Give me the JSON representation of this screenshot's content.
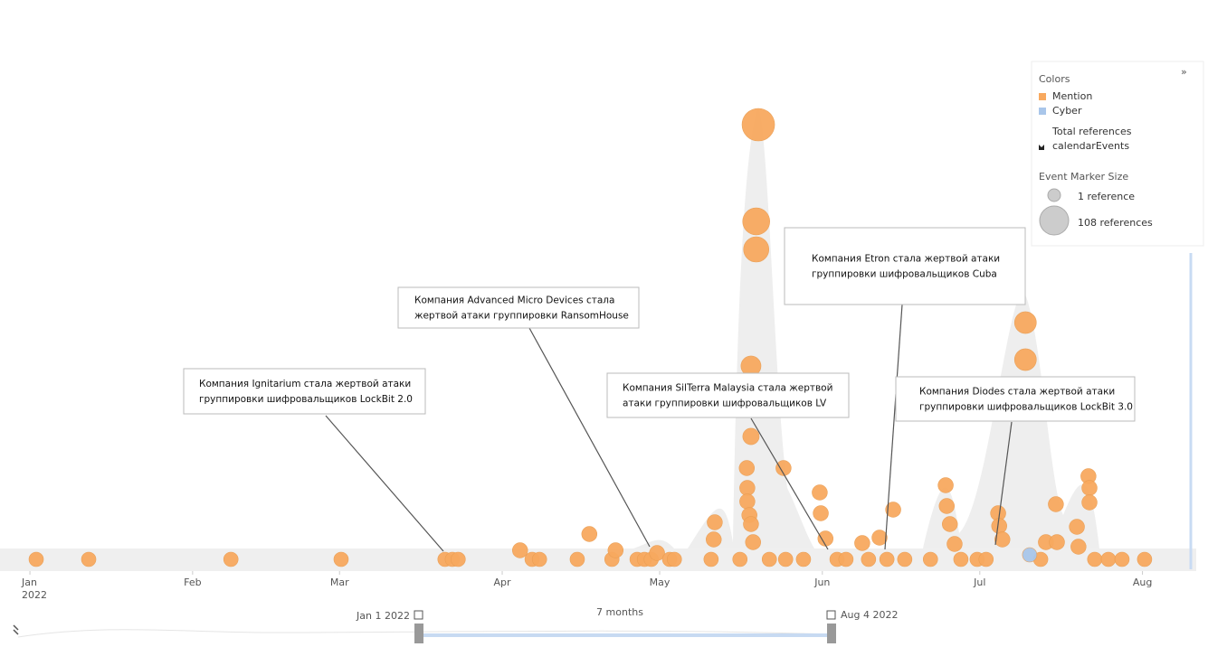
{
  "chart_data": {
    "type": "bubble",
    "x_year": "2022",
    "xlim": [
      -5.7,
      221.9
    ],
    "xticks": [
      {
        "value": 0,
        "label": "Jan"
      },
      {
        "value": 31,
        "label": "Feb"
      },
      {
        "value": 59,
        "label": "Mar"
      },
      {
        "value": 90,
        "label": "Apr"
      },
      {
        "value": 120,
        "label": "May"
      },
      {
        "value": 151,
        "label": "Jun"
      },
      {
        "value": 181,
        "label": "Jul"
      },
      {
        "value": 212,
        "label": "Aug"
      }
    ],
    "ylim": [
      0,
      100
    ],
    "size_range": [
      1,
      108
    ],
    "series": [
      {
        "name": "Mention",
        "color": "#f8a95f",
        "x": [
          1.2,
          11.2,
          38.3,
          59.3,
          79.1,
          80.5,
          81.6,
          93.4,
          95.7,
          97.1,
          104.3,
          106.6,
          110.9,
          111.6,
          115.7,
          117.1,
          118.4,
          119.5,
          121.9,
          122.8,
          129.8,
          130.5,
          130.3,
          135.3,
          136.6,
          136.7,
          136.7,
          137.1,
          137.4,
          137.8,
          138.8,
          138.4,
          138.4,
          137.4,
          137.4,
          140.9,
          143.6,
          144,
          147.4,
          150.5,
          150.7,
          151.6,
          153.8,
          155.5,
          158.6,
          159.8,
          161.9,
          163.3,
          164.5,
          166.7,
          171.6,
          174.5,
          174.7,
          175.3,
          176.2,
          177.4,
          180.5,
          182.2,
          184.5,
          184.7,
          185.3,
          189.7,
          189.7,
          192.6,
          193.6,
          195.5,
          195.7,
          199.5,
          199.8,
          201.7,
          201.9,
          201.9,
          202.9,
          205.5,
          208.1,
          212.4
        ],
        "values": [
          0,
          0,
          0,
          0,
          0,
          0,
          0,
          2,
          0,
          0,
          0,
          5.6,
          0,
          2,
          0,
          0,
          0,
          1.4,
          0,
          0,
          0,
          8.2,
          4.4,
          0,
          20.2,
          15.8,
          12.8,
          9.8,
          7.8,
          3.8,
          96.2,
          74.8,
          68.6,
          42.8,
          27.2,
          0,
          20.2,
          0,
          0,
          14.8,
          10.2,
          4.6,
          0,
          0,
          3.6,
          0,
          4.8,
          0,
          11,
          0,
          0,
          16.4,
          11.8,
          7.8,
          3.4,
          0,
          0,
          0,
          10.2,
          7.4,
          4.4,
          52.4,
          44.2,
          0,
          3.8,
          12.2,
          3.8,
          7.2,
          2.8,
          18.4,
          15.8,
          12.6,
          0,
          0,
          0,
          0
        ],
        "sizes": [
          1,
          1,
          1,
          1,
          1,
          1,
          1,
          2,
          1,
          1,
          1,
          2,
          1,
          2,
          1,
          1,
          1,
          2,
          1,
          1,
          1,
          2,
          2,
          1,
          2,
          2,
          2,
          2,
          2,
          2,
          108,
          57,
          44,
          15,
          4,
          1,
          2,
          1,
          1,
          2,
          2,
          2,
          1,
          1,
          2,
          1,
          2,
          1,
          2,
          1,
          1,
          2,
          2,
          2,
          2,
          1,
          1,
          1,
          2,
          2,
          2,
          23,
          23,
          1,
          2,
          2,
          2,
          2,
          2,
          2,
          2,
          2,
          1,
          1,
          1,
          1
        ]
      },
      {
        "name": "Cyber",
        "color": "#a9c6ea",
        "x": [
          190.5
        ],
        "values": [
          1
        ],
        "sizes": [
          1
        ]
      }
    ],
    "legend": {
      "title": "Colors",
      "total": "Total references",
      "events": "calendarEvents",
      "size_title": "Event Marker Size",
      "min_label": "1 reference",
      "max_label": "108 references"
    },
    "annotations": [
      {
        "lines": [
          "Компания Ignitarium стала жертвой атаки",
          "группировки шифровальщиков LockBit 2.0"
        ]
      },
      {
        "lines": [
          "Компания Advanced Micro Devices стала",
          "жертвой атаки группировки RansomHouse"
        ]
      },
      {
        "lines": [
          "Компания SilTerra Malaysia стала жертвой",
          "атаки группировки шифровальщиков LV"
        ]
      },
      {
        "lines": [
          "Компания Etron стала жертвой атаки",
          "группировки шифровальщиков Cuba"
        ]
      },
      {
        "lines": [
          "Компания Diodes стала жертвой атаки",
          "группировки шифровальщиков LockBit 3.0"
        ]
      }
    ],
    "navigator": {
      "start": "Jan 1 2022",
      "span": "7 months",
      "end": "Aug 4 2022"
    }
  }
}
